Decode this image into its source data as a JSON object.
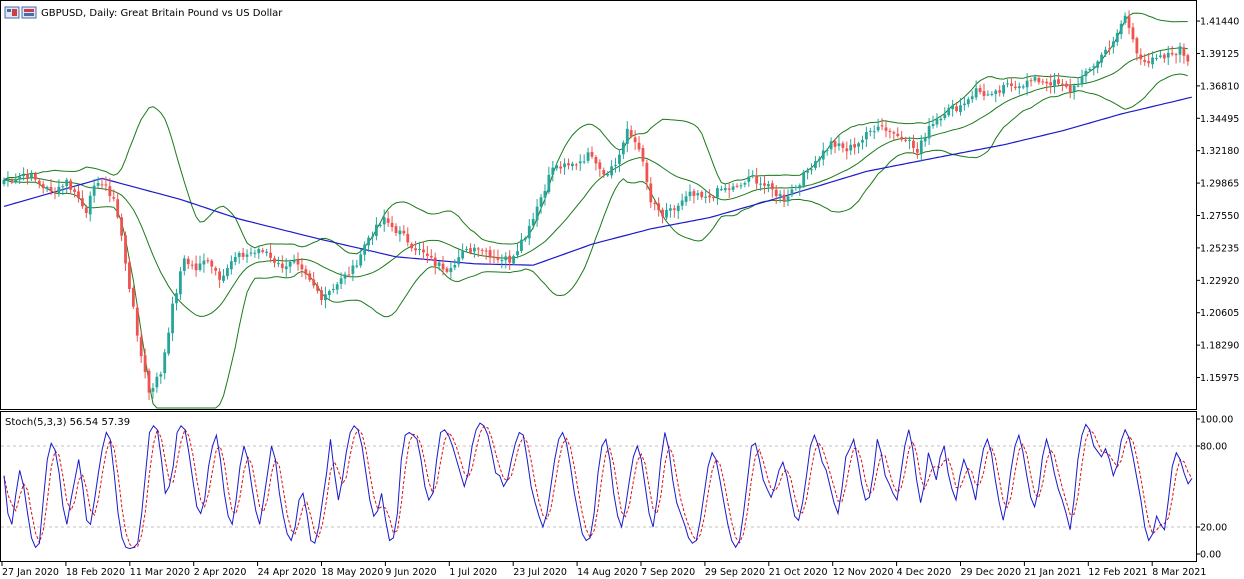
{
  "header": {
    "symbol_line": "GBPUSD, Daily:  Great Britain Pound vs US Dollar"
  },
  "stoch_header": {
    "text": "Stoch(5,3,3) 56.54 57.39"
  },
  "colors": {
    "bull": "#26a69a",
    "bear": "#ef5350",
    "bollinger": "#1a7a1a",
    "ma": "#1a1acc",
    "stoch_main": "#1a1acc",
    "stoch_signal": "#dd1111",
    "grid": "#c0c0c0"
  },
  "icons": [
    "chart-window-icon",
    "chart-window-icon-2"
  ],
  "chart_data": [
    {
      "type": "candlestick",
      "title": "GBPUSD, Daily:  Great Britain Pound vs US Dollar",
      "ylim": [
        1.138,
        1.428
      ],
      "y_ticks": [
        "1.41440",
        "1.39125",
        "1.36810",
        "1.34495",
        "1.32180",
        "1.29865",
        "1.27550",
        "1.25235",
        "1.22920",
        "1.20605",
        "1.18290",
        "1.15975"
      ],
      "x_ticks": [
        "27 Jan 2020",
        "18 Feb 2020",
        "11 Mar 2020",
        "2 Apr 2020",
        "24 Apr 2020",
        "18 May 2020",
        "9 Jun 2020",
        "1 Jul 2020",
        "23 Jul 2020",
        "14 Aug 2020",
        "7 Sep 2020",
        "29 Sep 2020",
        "21 Oct 2020",
        "12 Nov 2020",
        "4 Dec 2020",
        "29 Dec 2020",
        "21 Jan 2021",
        "12 Feb 2021",
        "8 Mar 2021"
      ],
      "close_anchors": [
        [
          0,
          1.301
        ],
        [
          6,
          1.305
        ],
        [
          12,
          1.292
        ],
        [
          16,
          1.3
        ],
        [
          21,
          1.28
        ],
        [
          24,
          1.301
        ],
        [
          28,
          1.288
        ],
        [
          30,
          1.26
        ],
        [
          34,
          1.19
        ],
        [
          37,
          1.15
        ],
        [
          40,
          1.163
        ],
        [
          43,
          1.21
        ],
        [
          46,
          1.245
        ],
        [
          49,
          1.237
        ],
        [
          52,
          1.245
        ],
        [
          55,
          1.232
        ],
        [
          59,
          1.245
        ],
        [
          63,
          1.249
        ],
        [
          67,
          1.25
        ],
        [
          70,
          1.24
        ],
        [
          74,
          1.241
        ],
        [
          78,
          1.228
        ],
        [
          81,
          1.218
        ],
        [
          85,
          1.227
        ],
        [
          89,
          1.237
        ],
        [
          93,
          1.26
        ],
        [
          97,
          1.272
        ],
        [
          101,
          1.263
        ],
        [
          104,
          1.255
        ],
        [
          107,
          1.248
        ],
        [
          110,
          1.241
        ],
        [
          113,
          1.238
        ],
        [
          117,
          1.248
        ],
        [
          121,
          1.254
        ],
        [
          125,
          1.246
        ],
        [
          129,
          1.244
        ],
        [
          133,
          1.262
        ],
        [
          136,
          1.282
        ],
        [
          140,
          1.31
        ],
        [
          144,
          1.31
        ],
        [
          147,
          1.315
        ],
        [
          150,
          1.32
        ],
        [
          153,
          1.306
        ],
        [
          156,
          1.312
        ],
        [
          159,
          1.335
        ],
        [
          162,
          1.325
        ],
        [
          165,
          1.285
        ],
        [
          168,
          1.275
        ],
        [
          171,
          1.28
        ],
        [
          175,
          1.29
        ],
        [
          179,
          1.287
        ],
        [
          183,
          1.294
        ],
        [
          187,
          1.295
        ],
        [
          191,
          1.303
        ],
        [
          195,
          1.295
        ],
        [
          199,
          1.288
        ],
        [
          203,
          1.3
        ],
        [
          207,
          1.315
        ],
        [
          211,
          1.327
        ],
        [
          215,
          1.322
        ],
        [
          219,
          1.33
        ],
        [
          223,
          1.341
        ],
        [
          227,
          1.334
        ],
        [
          230,
          1.332
        ],
        [
          233,
          1.32
        ],
        [
          236,
          1.34
        ],
        [
          240,
          1.35
        ],
        [
          244,
          1.354
        ],
        [
          248,
          1.365
        ],
        [
          252,
          1.36
        ],
        [
          256,
          1.368
        ],
        [
          260,
          1.37
        ],
        [
          264,
          1.372
        ],
        [
          268,
          1.37
        ],
        [
          272,
          1.365
        ],
        [
          276,
          1.376
        ],
        [
          280,
          1.39
        ],
        [
          284,
          1.404
        ],
        [
          286,
          1.418
        ],
        [
          289,
          1.392
        ],
        [
          292,
          1.385
        ],
        [
          296,
          1.388
        ],
        [
          300,
          1.394
        ],
        [
          302,
          1.387
        ]
      ],
      "ma_anchors": [
        [
          0,
          1.282
        ],
        [
          25,
          1.302
        ],
        [
          45,
          1.287
        ],
        [
          60,
          1.273
        ],
        [
          80,
          1.259
        ],
        [
          100,
          1.246
        ],
        [
          120,
          1.241
        ],
        [
          135,
          1.24
        ],
        [
          150,
          1.255
        ],
        [
          165,
          1.266
        ],
        [
          180,
          1.274
        ],
        [
          200,
          1.29
        ],
        [
          220,
          1.307
        ],
        [
          240,
          1.318
        ],
        [
          255,
          1.326
        ],
        [
          270,
          1.336
        ],
        [
          285,
          1.348
        ],
        [
          303,
          1.36
        ]
      ],
      "stoch": {
        "ylim": [
          0,
          100
        ],
        "y_ticks": [
          "100.00",
          "80.00",
          "20.00",
          "0.00"
        ],
        "levels": [
          80,
          20
        ],
        "main": [
          58,
          30,
          22,
          44,
          62,
          50,
          30,
          12,
          5,
          8,
          40,
          70,
          82,
          77,
          60,
          35,
          22,
          40,
          55,
          70,
          50,
          25,
          22,
          40,
          60,
          78,
          90,
          85,
          60,
          30,
          12,
          5,
          4,
          5,
          8,
          30,
          60,
          90,
          95,
          92,
          70,
          45,
          50,
          65,
          90,
          95,
          92,
          75,
          55,
          35,
          30,
          40,
          65,
          80,
          88,
          70,
          45,
          28,
          22,
          40,
          65,
          80,
          70,
          50,
          32,
          22,
          40,
          60,
          80,
          70,
          45,
          28,
          15,
          10,
          20,
          40,
          45,
          30,
          10,
          8,
          20,
          40,
          60,
          85,
          60,
          40,
          55,
          75,
          90,
          95,
          92,
          80,
          60,
          40,
          28,
          32,
          45,
          25,
          10,
          12,
          30,
          70,
          88,
          90,
          88,
          85,
          70,
          50,
          40,
          45,
          70,
          90,
          92,
          88,
          80,
          70,
          60,
          50,
          60,
          80,
          92,
          97,
          95,
          88,
          75,
          60,
          58,
          50,
          55,
          70,
          82,
          90,
          88,
          70,
          50,
          38,
          28,
          20,
          30,
          50,
          70,
          85,
          90,
          82,
          65,
          45,
          30,
          15,
          10,
          12,
          30,
          60,
          80,
          85,
          70,
          45,
          28,
          20,
          35,
          55,
          72,
          80,
          70,
          50,
          30,
          20,
          40,
          70,
          90,
          78,
          55,
          38,
          30,
          22,
          12,
          8,
          10,
          25,
          45,
          65,
          75,
          70,
          55,
          38,
          22,
          10,
          5,
          10,
          30,
          55,
          80,
          82,
          70,
          55,
          48,
          42,
          50,
          62,
          68,
          58,
          42,
          28,
          25,
          38,
          58,
          80,
          88,
          80,
          68,
          62,
          50,
          38,
          30,
          48,
          72,
          78,
          85,
          70,
          52,
          40,
          42,
          60,
          85,
          75,
          58,
          52,
          45,
          40,
          60,
          80,
          92,
          78,
          55,
          38,
          52,
          75,
          65,
          55,
          72,
          80,
          60,
          48,
          40,
          58,
          70,
          62,
          52,
          40,
          62,
          78,
          85,
          75,
          55,
          38,
          25,
          40,
          62,
          80,
          88,
          76,
          58,
          42,
          35,
          48,
          72,
          85,
          75,
          60,
          48,
          40,
          30,
          18,
          40,
          70,
          88,
          96,
          92,
          80,
          76,
          72,
          78,
          70,
          58,
          66,
          84,
          92,
          86,
          72,
          56,
          40,
          20,
          10,
          15,
          28,
          22,
          18,
          40,
          65,
          75,
          70,
          60,
          52,
          56
        ]
      }
    }
  ]
}
